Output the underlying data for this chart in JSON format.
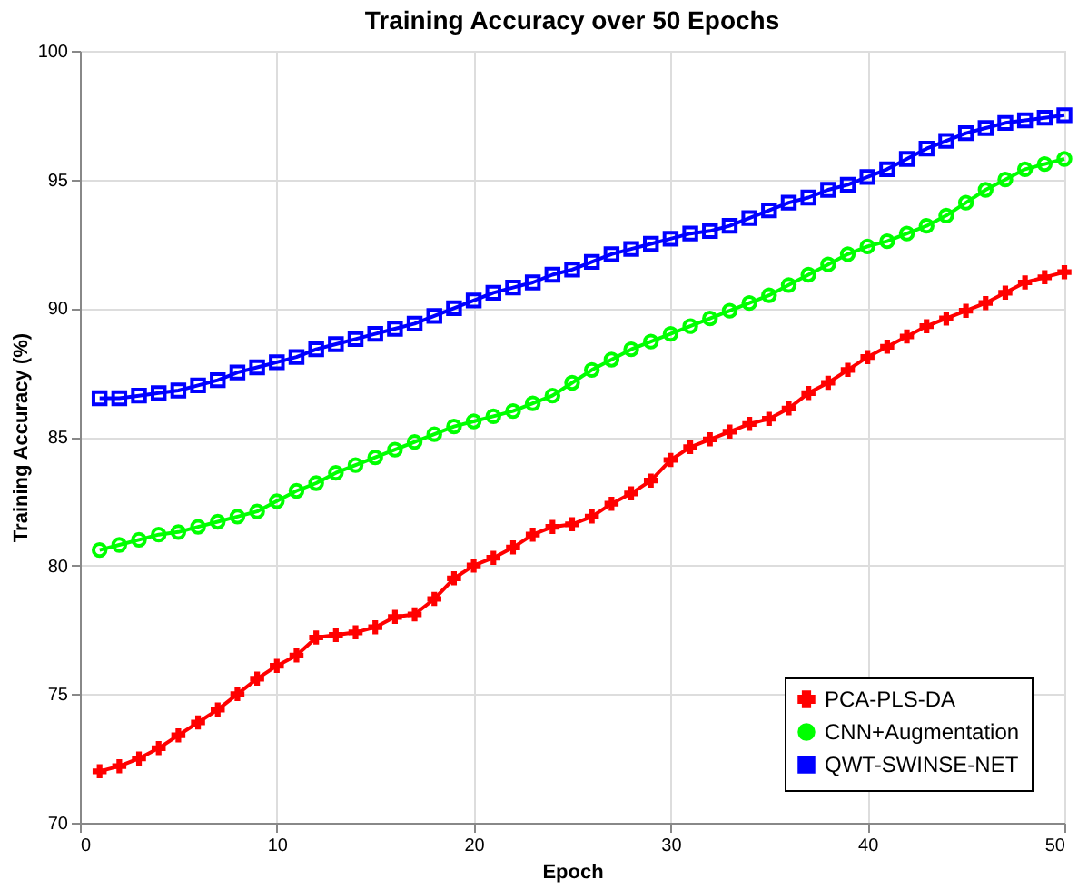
{
  "chart_data": {
    "type": "line",
    "title": "Training Accuracy over 50 Epochs",
    "xlabel": "Epoch",
    "ylabel": "Training Accuracy (%)",
    "x": [
      1,
      2,
      3,
      4,
      5,
      6,
      7,
      8,
      9,
      10,
      11,
      12,
      13,
      14,
      15,
      16,
      17,
      18,
      19,
      20,
      21,
      22,
      23,
      24,
      25,
      26,
      27,
      28,
      29,
      30,
      31,
      32,
      33,
      34,
      35,
      36,
      37,
      38,
      39,
      40,
      41,
      42,
      43,
      44,
      45,
      46,
      47,
      48,
      49,
      50
    ],
    "series": [
      {
        "name": "PCA-PLS-DA",
        "color": "#ff0000",
        "marker": "cross",
        "values": [
          72.0,
          72.2,
          72.5,
          72.9,
          73.4,
          73.9,
          74.4,
          75.0,
          75.6,
          76.1,
          76.5,
          77.2,
          77.3,
          77.4,
          77.6,
          78.0,
          78.1,
          78.7,
          79.5,
          80.0,
          80.3,
          80.7,
          81.2,
          81.5,
          81.6,
          81.9,
          82.4,
          82.8,
          83.3,
          84.1,
          84.6,
          84.9,
          85.2,
          85.5,
          85.7,
          86.1,
          86.7,
          87.1,
          87.6,
          88.1,
          88.5,
          88.9,
          89.3,
          89.6,
          89.9,
          90.2,
          90.6,
          91.0,
          91.2,
          91.4
        ]
      },
      {
        "name": "CNN+Augmentation",
        "color": "#00ff00",
        "marker": "circle",
        "values": [
          80.6,
          80.8,
          81.0,
          81.2,
          81.3,
          81.5,
          81.7,
          81.9,
          82.1,
          82.5,
          82.9,
          83.2,
          83.6,
          83.9,
          84.2,
          84.5,
          84.8,
          85.1,
          85.4,
          85.6,
          85.8,
          86.0,
          86.3,
          86.6,
          87.1,
          87.6,
          88.0,
          88.4,
          88.7,
          89.0,
          89.3,
          89.6,
          89.9,
          90.2,
          90.5,
          90.9,
          91.3,
          91.7,
          92.1,
          92.4,
          92.6,
          92.9,
          93.2,
          93.6,
          94.1,
          94.6,
          95.0,
          95.4,
          95.6,
          95.8
        ]
      },
      {
        "name": "QWT-SWINSE-NET",
        "color": "#0000ff",
        "marker": "square",
        "values": [
          86.5,
          86.5,
          86.6,
          86.7,
          86.8,
          87.0,
          87.2,
          87.5,
          87.7,
          87.9,
          88.1,
          88.4,
          88.6,
          88.8,
          89.0,
          89.2,
          89.4,
          89.7,
          90.0,
          90.3,
          90.6,
          90.8,
          91.0,
          91.3,
          91.5,
          91.8,
          92.1,
          92.3,
          92.5,
          92.7,
          92.9,
          93.0,
          93.2,
          93.5,
          93.8,
          94.1,
          94.3,
          94.6,
          94.8,
          95.1,
          95.4,
          95.8,
          96.2,
          96.5,
          96.8,
          97.0,
          97.2,
          97.3,
          97.4,
          97.5
        ]
      }
    ],
    "xlim": [
      0,
      50
    ],
    "xticks": [
      0,
      10,
      20,
      30,
      40,
      50
    ],
    "ylim": [
      70,
      100
    ],
    "yticks": [
      70,
      75,
      80,
      85,
      90,
      95,
      100
    ],
    "grid": true,
    "legend": "bottom right",
    "line_style": "solid"
  }
}
